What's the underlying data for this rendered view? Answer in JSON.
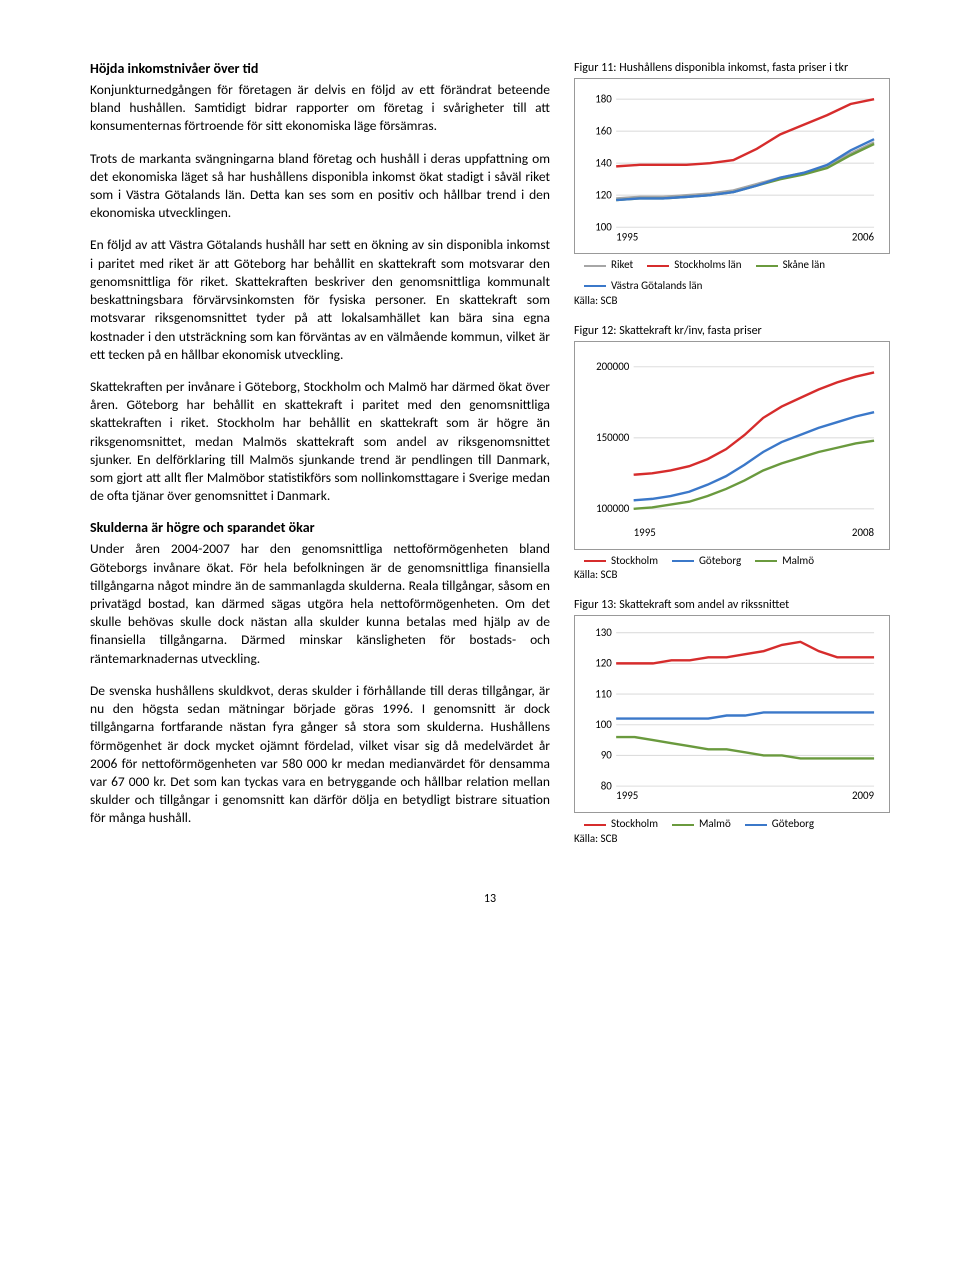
{
  "page_number": "13",
  "text": {
    "h1": "Höjda inkomstnivåer över tid",
    "p1": "Konjunkturnedgången för företagen är delvis en följd av ett förändrat beteende bland hushållen. Samtidigt bidrar rapporter om företag i svårigheter till att konsumenternas förtroende för sitt ekonomiska läge försämras.",
    "p2": "Trots de markanta svängningarna bland företag och hushåll i deras uppfattning om det ekonomiska läget så har hushållens disponibla inkomst ökat stadigt i såväl riket som i Västra Götalands län. Detta kan ses som en positiv och hållbar trend i den ekonomiska utvecklingen.",
    "p3": "En följd av att Västra Götalands hushåll har sett en ökning av sin disponibla inkomst i paritet med riket är att Göteborg har behållit en skattekraft som motsvarar den genomsnittliga för riket. Skattekraften beskriver den genomsnittliga kommunalt beskattningsbara förvärvsinkomsten för fysiska personer. En skattekraft som motsvarar riksgenomsnittet tyder på att lokalsamhället kan bära sina egna kostnader i den utsträckning som kan förväntas av en välmående kommun, vilket är ett tecken på en hållbar ekonomisk utveckling.",
    "p4": "Skattekraften per invånare i Göteborg, Stockholm och Malmö har därmed ökat över åren. Göteborg har behållit en skattekraft i paritet med den genomsnittliga skattekraften i riket. Stockholm har behållit en skattekraft som är högre än riksgenomsnittet, medan Malmös skattekraft som andel av riksgenomsnittet sjunker. En delförklaring till Malmös sjunkande trend är pendlingen till Danmark, som gjort att allt fler Malmöbor statistikförs som nollinkomsttagare i Sverige medan de ofta tjänar över genomsnittet i Danmark.",
    "h2": "Skulderna är högre och sparandet ökar",
    "p5": "Under åren 2004-2007 har den genomsnittliga nettoförmögenheten bland Göteborgs invånare ökat. För hela befolkningen är de genomsnittliga finansiella tillgångarna något mindre än de sammanlagda skulderna. Reala tillgångar, såsom en privatägd bostad, kan därmed sägas utgöra hela nettoförmögenheten. Om det skulle behövas skulle dock nästan alla skulder kunna betalas med hjälp av de finansiella tillgångarna. Därmed minskar känsligheten för bostads- och räntemarknadernas utveckling.",
    "p6": "De svenska hushållens skuldkvot, deras skulder i förhållande till deras tillgångar, är nu den högsta sedan mätningar började göras 1996. I genomsnitt är dock tillgångarna fortfarande nästan fyra gånger så stora som skulderna.  Hushållens förmögenhet är dock mycket ojämnt fördelad, vilket visar sig då medelvärdet år 2006 för nettoförmögenheten var 580 000 kr medan medianvärdet för densamma var 67 000 kr. Det som kan tyckas vara en betryggande och hållbar relation mellan skulder och tillgångar i genomsnitt kan därför dölja en betydligt bistrare situation för många hushåll."
  },
  "colors": {
    "red": "#d62c2c",
    "blue": "#3b78c9",
    "green": "#6a9a3e",
    "gray": "#a6a6a6",
    "grid": "#dddddd",
    "border": "#999999"
  },
  "fig11": {
    "title": "Figur 11: Hushållens disponibla inkomst, fasta priser i tkr",
    "yticks": [
      100,
      120,
      140,
      160,
      180
    ],
    "xticks": [
      "1995",
      "2006"
    ],
    "ylim": [
      100,
      186
    ],
    "series": {
      "riket": {
        "label": "Riket",
        "color": "#a6a6a6",
        "y": [
          118,
          119,
          119,
          120,
          121,
          123,
          127,
          131,
          134,
          138,
          146,
          153
        ]
      },
      "stockholm": {
        "label": "Stockholms län",
        "color": "#d62c2c",
        "y": [
          138,
          139,
          139,
          139,
          140,
          142,
          149,
          158,
          164,
          170,
          177,
          180
        ]
      },
      "skane": {
        "label": "Skåne län",
        "color": "#6a9a3e",
        "y": [
          117,
          118,
          118,
          119,
          120,
          122,
          126,
          130,
          133,
          137,
          145,
          152
        ]
      },
      "vastra": {
        "label": "Västra Götalands län",
        "color": "#3b78c9",
        "y": [
          117,
          118,
          118,
          119,
          120,
          122,
          126,
          131,
          134,
          139,
          148,
          155
        ]
      }
    },
    "source": "Källa: SCB"
  },
  "fig12": {
    "title": "Figur 12: Skattekraft kr/inv, fasta priser",
    "yticks": [
      100000,
      150000,
      200000
    ],
    "xticks": [
      "1995",
      "2008"
    ],
    "ylim": [
      90000,
      210000
    ],
    "series": {
      "stockholm": {
        "label": "Stockholm",
        "color": "#d62c2c",
        "y": [
          124000,
          125000,
          127000,
          130000,
          135000,
          142000,
          152000,
          164000,
          172000,
          178000,
          184000,
          189000,
          193000,
          196000
        ]
      },
      "goteborg": {
        "label": "Göteborg",
        "color": "#3b78c9",
        "y": [
          106000,
          107000,
          109000,
          112000,
          117000,
          123000,
          131000,
          140000,
          147000,
          152000,
          157000,
          161000,
          165000,
          168000
        ]
      },
      "malmo": {
        "label": "Malmö",
        "color": "#6a9a3e",
        "y": [
          100000,
          101000,
          103000,
          105000,
          109000,
          114000,
          120000,
          127000,
          132000,
          136000,
          140000,
          143000,
          146000,
          148000
        ]
      }
    },
    "source": "Källa: SCB"
  },
  "fig13": {
    "title": "Figur 13: Skattekraft som andel av rikssnittet",
    "yticks": [
      80,
      90,
      100,
      110,
      120,
      130
    ],
    "xticks": [
      "1995",
      "2009"
    ],
    "ylim": [
      80,
      132
    ],
    "series": {
      "stockholm": {
        "label": "Stockholm",
        "color": "#d62c2c",
        "y": [
          120,
          120,
          120,
          121,
          121,
          122,
          122,
          123,
          124,
          126,
          127,
          124,
          122,
          122,
          122
        ]
      },
      "malmo": {
        "label": "Malmö",
        "color": "#6a9a3e",
        "y": [
          96,
          96,
          95,
          94,
          93,
          92,
          92,
          91,
          90,
          90,
          89,
          89,
          89,
          89,
          89
        ]
      },
      "goteborg": {
        "label": "Göteborg",
        "color": "#3b78c9",
        "y": [
          102,
          102,
          102,
          102,
          102,
          102,
          103,
          103,
          104,
          104,
          104,
          104,
          104,
          104,
          104
        ]
      }
    },
    "source": "Källa: SCB"
  }
}
